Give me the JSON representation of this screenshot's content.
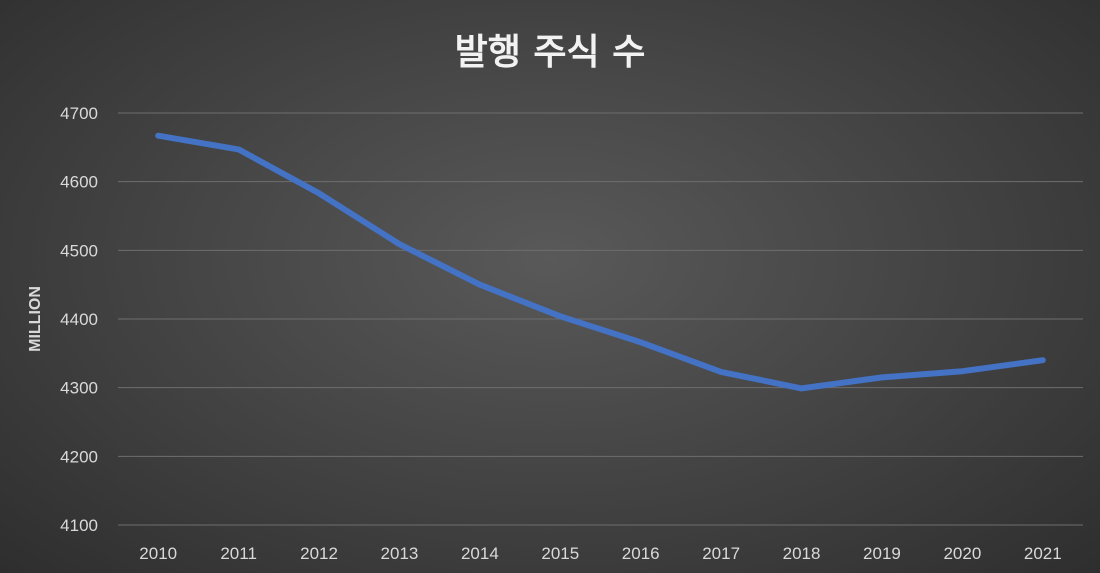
{
  "chart_data": {
    "type": "line",
    "title": "발행 주식 수",
    "xlabel": "",
    "ylabel": "MILLION",
    "categories": [
      "2010",
      "2011",
      "2012",
      "2013",
      "2014",
      "2015",
      "2016",
      "2017",
      "2018",
      "2019",
      "2020",
      "2021"
    ],
    "series": [
      {
        "values": [
          4667,
          4647,
          4583,
          4509,
          4450,
          4404,
          4366,
          4323,
          4299,
          4315,
          4324,
          4340
        ]
      }
    ],
    "ylim": [
      4100,
      4700
    ],
    "yticks": [
      "4100",
      "4200",
      "4300",
      "4400",
      "4500",
      "4600",
      "4700"
    ],
    "grid": true,
    "colors": {
      "line": "#4472c4",
      "grid": "#6e6e6e"
    }
  }
}
